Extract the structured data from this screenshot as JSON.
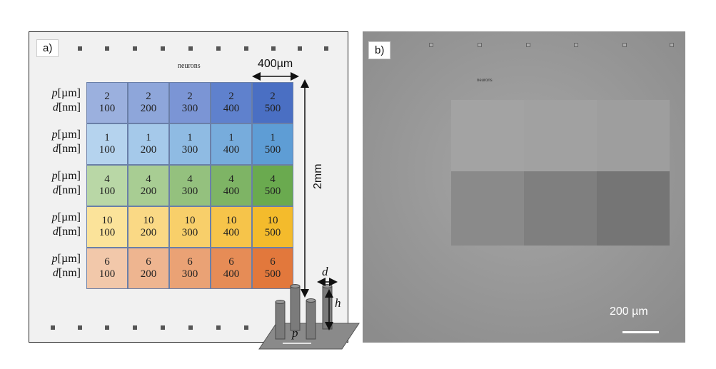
{
  "panel_a": {
    "label": "a)",
    "neurons_label": "neurons",
    "dimension_width": "400µm",
    "dimension_height": "2mm",
    "row_label_p": "p",
    "row_label_p_unit": "[µm]",
    "row_label_d": "d",
    "row_label_d_unit": "[nm]",
    "rows": [
      {
        "pitch": "2",
        "diameters": [
          "100",
          "200",
          "300",
          "400",
          "500"
        ],
        "colors": [
          "#9bb0de",
          "#8ea6da",
          "#7b95d5",
          "#5f81cd",
          "#4a6fc3"
        ]
      },
      {
        "pitch": "1",
        "diameters": [
          "100",
          "200",
          "300",
          "400",
          "500"
        ],
        "colors": [
          "#b5d3ee",
          "#a5c9ea",
          "#8fbbe3",
          "#77acdc",
          "#5e9dd5"
        ]
      },
      {
        "pitch": "4",
        "diameters": [
          "100",
          "200",
          "300",
          "400",
          "500"
        ],
        "colors": [
          "#b9d7a6",
          "#a8cd93",
          "#94c17e",
          "#7eb465",
          "#6aaa4f"
        ]
      },
      {
        "pitch": "10",
        "diameters": [
          "100",
          "200",
          "300",
          "400",
          "500"
        ],
        "colors": [
          "#fbe39a",
          "#fad985",
          "#f8cf6a",
          "#f6c44a",
          "#f4bb2c"
        ]
      },
      {
        "pitch": "6",
        "diameters": [
          "100",
          "200",
          "300",
          "400",
          "500"
        ],
        "colors": [
          "#f2c8aa",
          "#eeb590",
          "#eaa275",
          "#e68c56",
          "#e2783c"
        ]
      }
    ],
    "pillar_labels": {
      "d": "d",
      "h": "h",
      "p": "p"
    }
  },
  "panel_b": {
    "label": "b)",
    "neurons_label": "neurons",
    "scale_bar_label": "200 µm"
  }
}
